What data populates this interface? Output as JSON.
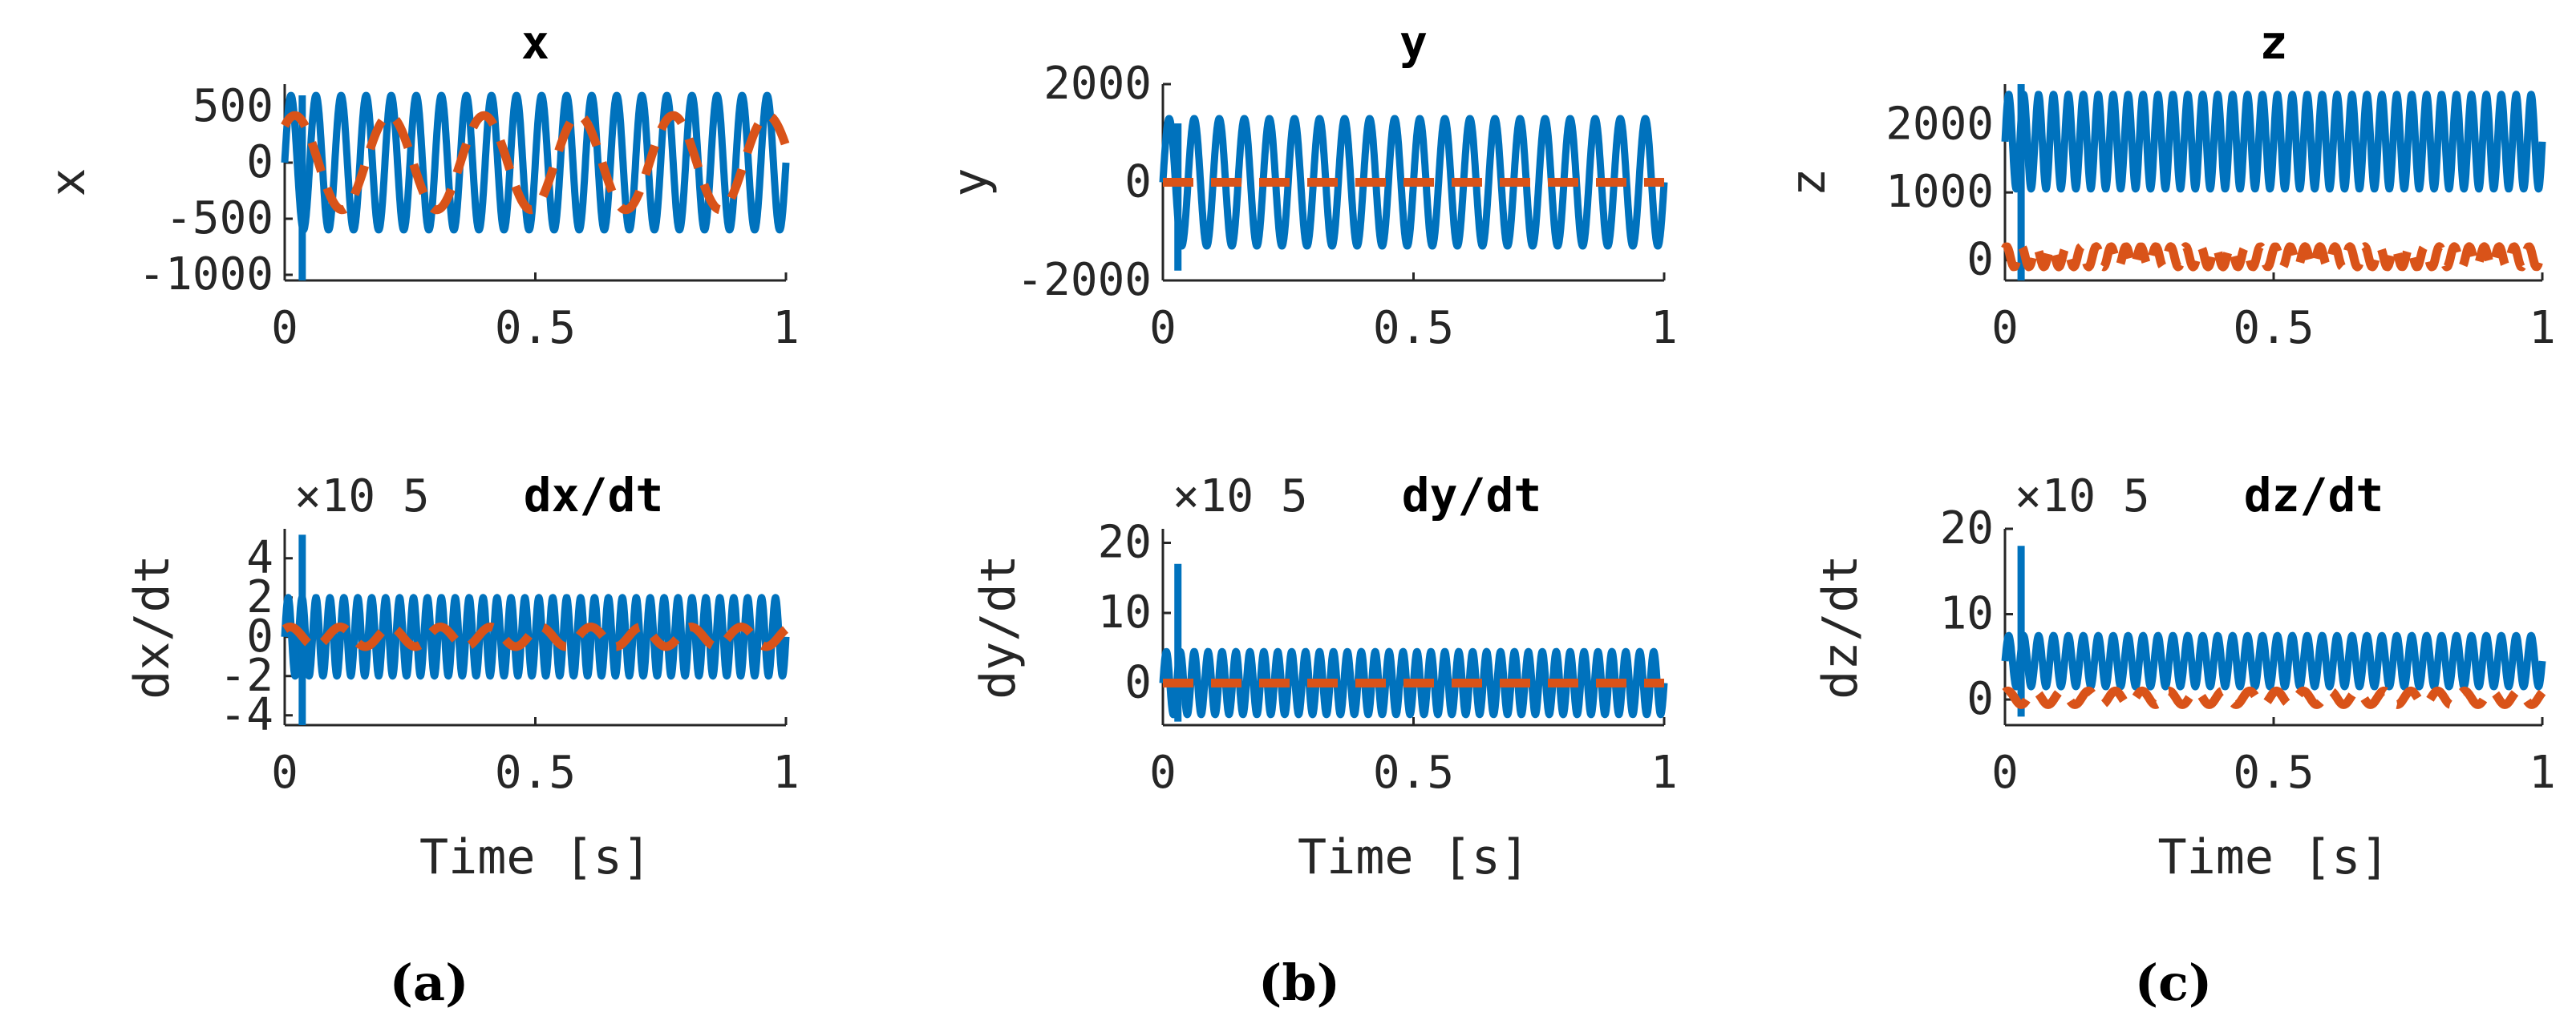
{
  "panel_labels": [
    "(a)",
    "(b)",
    "(c)"
  ],
  "colors": {
    "series_1": "#0072BD",
    "series_2": "#D95319"
  },
  "chart_data": [
    {
      "id": "x",
      "type": "line",
      "title": "x",
      "ylabel": "x",
      "xlabel": "",
      "xlim": [
        0,
        1
      ],
      "ylim": [
        -1050,
        700
      ],
      "xticks": [
        0,
        0.5,
        1
      ],
      "xtick_labels": [
        "0",
        "0.5",
        "1"
      ],
      "yticks": [
        500,
        0,
        -500,
        -1000
      ],
      "ytick_labels": [
        "500",
        "0",
        "-500",
        "-1000"
      ],
      "exponent_label": "",
      "series": [
        {
          "style": "solid",
          "color": "#0072BD",
          "shape": "oscillation",
          "periods": 20,
          "amplitude": 600,
          "offset": 0,
          "transient": {
            "t": 0.035,
            "min": -1050,
            "max": 600
          }
        },
        {
          "style": "dashed",
          "color": "#D95319",
          "shape": "oscillation",
          "periods": 5.3,
          "amplitude": 420,
          "offset": 0
        }
      ]
    },
    {
      "id": "y",
      "type": "line",
      "title": "y",
      "ylabel": "y",
      "xlabel": "",
      "xlim": [
        0,
        1
      ],
      "ylim": [
        -2000,
        2000
      ],
      "xticks": [
        0,
        0.5,
        1
      ],
      "xtick_labels": [
        "0",
        "0.5",
        "1"
      ],
      "yticks": [
        2000,
        0,
        -2000
      ],
      "ytick_labels": [
        "2000",
        "0",
        "-2000"
      ],
      "exponent_label": "",
      "series": [
        {
          "style": "solid",
          "color": "#0072BD",
          "shape": "oscillation",
          "periods": 20,
          "amplitude": 1300,
          "offset": 0,
          "transient": {
            "t": 0.03,
            "min": -1800,
            "max": 1200
          }
        },
        {
          "style": "dashed",
          "color": "#D95319",
          "shape": "constant",
          "amplitude": 0,
          "offset": 0
        }
      ]
    },
    {
      "id": "z",
      "type": "line",
      "title": "z",
      "ylabel": "z",
      "xlabel": "",
      "xlim": [
        0,
        1
      ],
      "ylim": [
        -300,
        2600
      ],
      "xticks": [
        0,
        0.5,
        1
      ],
      "xtick_labels": [
        "0",
        "0.5",
        "1"
      ],
      "yticks": [
        2000,
        1000,
        0
      ],
      "ytick_labels": [
        "2000",
        "1000",
        "0"
      ],
      "exponent_label": "",
      "series": [
        {
          "style": "solid",
          "color": "#0072BD",
          "shape": "oscillation",
          "periods": 36,
          "amplitude": 700,
          "offset": 1750,
          "transient": {
            "t": 0.03,
            "min": -300,
            "max": 2600
          }
        },
        {
          "style": "dashed",
          "color": "#D95319",
          "shape": "oscillation",
          "periods": 36,
          "amplitude": 150,
          "offset": 50
        }
      ]
    },
    {
      "id": "dxdt",
      "type": "line",
      "title": "dx/dt",
      "ylabel": "dx/dt",
      "xlabel": "Time [s]",
      "xlim": [
        0,
        1
      ],
      "ylim": [
        -4.5,
        5.5
      ],
      "xticks": [
        0,
        0.5,
        1
      ],
      "xtick_labels": [
        "0",
        "0.5",
        "1"
      ],
      "yticks": [
        4,
        2,
        0,
        -2,
        -4
      ],
      "ytick_labels": [
        "4",
        "2",
        "0",
        "-2",
        "-4"
      ],
      "exponent_label": "×10 5",
      "series": [
        {
          "style": "solid",
          "color": "#0072BD",
          "shape": "oscillation",
          "periods": 36,
          "amplitude": 2,
          "offset": 0,
          "transient": {
            "t": 0.035,
            "min": -4.5,
            "max": 5.2
          }
        },
        {
          "style": "dashed",
          "color": "#D95319",
          "shape": "oscillation",
          "periods": 10,
          "amplitude": 0.5,
          "offset": 0
        }
      ]
    },
    {
      "id": "dydt",
      "type": "line",
      "title": "dy/dt",
      "ylabel": "dy/dt",
      "xlabel": "Time [s]",
      "xlim": [
        0,
        1
      ],
      "ylim": [
        -6,
        22
      ],
      "xticks": [
        0,
        0.5,
        1
      ],
      "xtick_labels": [
        "0",
        "0.5",
        "1"
      ],
      "yticks": [
        20,
        10,
        0
      ],
      "ytick_labels": [
        "20",
        "10",
        "0"
      ],
      "exponent_label": "×10 5",
      "series": [
        {
          "style": "solid",
          "color": "#0072BD",
          "shape": "oscillation",
          "periods": 36,
          "amplitude": 4.5,
          "offset": 0,
          "transient": {
            "t": 0.03,
            "min": -5.5,
            "max": 17
          }
        },
        {
          "style": "dashed",
          "color": "#D95319",
          "shape": "constant",
          "amplitude": 0,
          "offset": 0
        }
      ]
    },
    {
      "id": "dzdt",
      "type": "line",
      "title": "dz/dt",
      "ylabel": "dz/dt",
      "xlabel": "Time [s]",
      "xlim": [
        0,
        1
      ],
      "ylim": [
        -3,
        20
      ],
      "xticks": [
        0,
        0.5,
        1
      ],
      "xtick_labels": [
        "0",
        "0.5",
        "1"
      ],
      "yticks": [
        20,
        10,
        0
      ],
      "ytick_labels": [
        "20",
        "10",
        "0"
      ],
      "exponent_label": "×10 5",
      "series": [
        {
          "style": "solid",
          "color": "#0072BD",
          "shape": "oscillation",
          "periods": 36,
          "amplitude": 3,
          "offset": 4.5,
          "transient": {
            "t": 0.03,
            "min": -2,
            "max": 18
          }
        },
        {
          "style": "dashed",
          "color": "#D95319",
          "shape": "oscillation",
          "periods": 20,
          "amplitude": 0.8,
          "offset": 0.2
        }
      ]
    }
  ]
}
